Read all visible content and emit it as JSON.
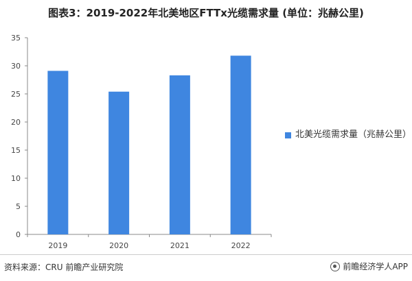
{
  "chart_data": {
    "type": "bar",
    "title": "图表3：2019-2022年北美地区FTTx光缆需求量 (单位：兆赫公里)",
    "categories": [
      "2019",
      "2020",
      "2021",
      "2022"
    ],
    "series": [
      {
        "name": "北美光缆需求量（兆赫公里）",
        "values": [
          29.1,
          25.4,
          28.3,
          31.8
        ]
      }
    ],
    "ylim": [
      0,
      35
    ],
    "yticks": [
      0,
      5,
      10,
      15,
      20,
      25,
      30,
      35
    ],
    "xlabel": "",
    "ylabel": "",
    "grid": false,
    "legend": "right",
    "bar_color": "#3f86e0"
  },
  "footer": {
    "source": "资料来源：CRU 前瞻产业研究院",
    "brand": "前瞻经济学人APP",
    "brand_icon": "qianzhan-logo-icon"
  }
}
